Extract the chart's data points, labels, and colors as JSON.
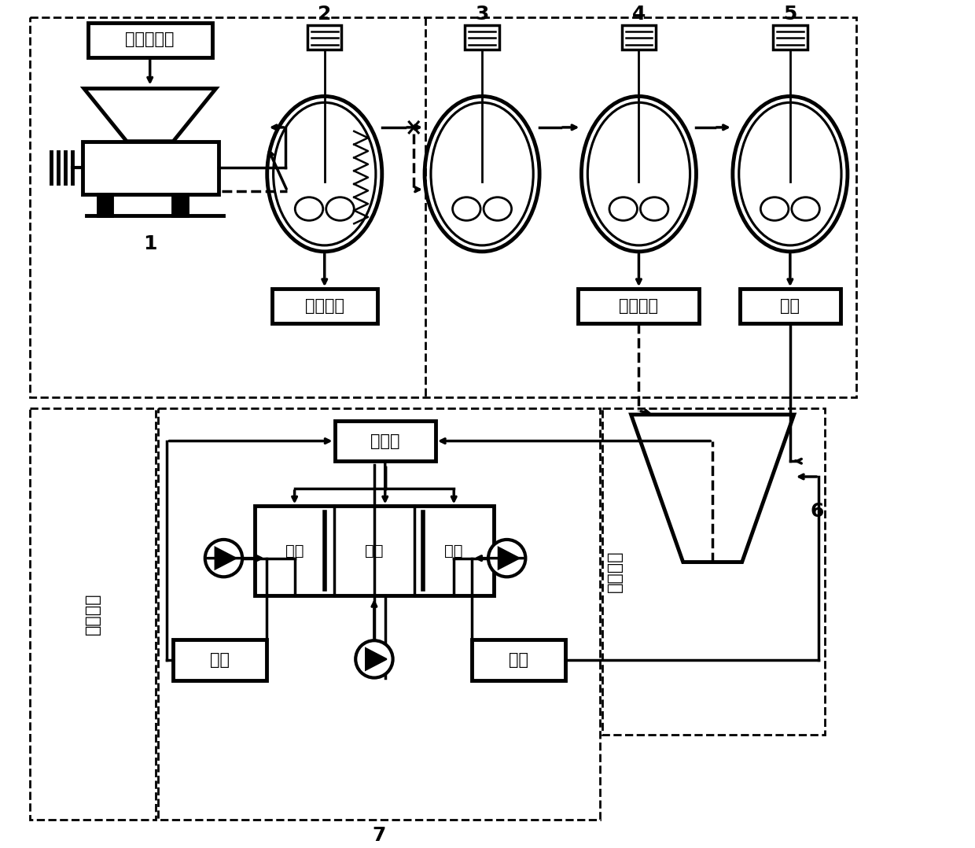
{
  "bg_color": "#ffffff",
  "line_color": "#000000",
  "labels": {
    "catalyst": "脱硝催化剂",
    "tio2": "二氧化钛",
    "ammonium_vanadate": "偏钒酸铵",
    "tungstic_acid": "钨酸",
    "brine_tank": "盐水罐",
    "acid_chamber": "酸室",
    "salt_chamber": "盐室",
    "alkali_chamber": "碱室",
    "acid_tank": "酸罐",
    "alkali_tank": "碱罐",
    "acid_reuse": "酸液回用",
    "alkali_reuse": "碱液回用"
  },
  "numbers": [
    "1",
    "2",
    "3",
    "4",
    "5",
    "6",
    "7"
  ]
}
